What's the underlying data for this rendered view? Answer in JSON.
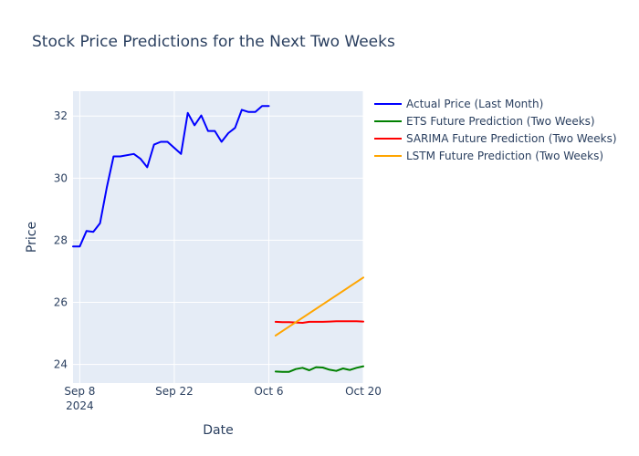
{
  "chart_data": {
    "type": "line",
    "title": "Stock Price Predictions for the Next Two Weeks",
    "xlabel": "Date",
    "ylabel": "Price",
    "x_range": [
      "2024-09-07",
      "2024-10-20"
    ],
    "ylim": [
      23.4,
      32.8
    ],
    "grid": true,
    "legend_placement": "top-right",
    "x_ticks": [
      {
        "date": "2024-09-08",
        "label": "Sep 8",
        "sublabel": "2024"
      },
      {
        "date": "2024-09-22",
        "label": "Sep 22",
        "sublabel": ""
      },
      {
        "date": "2024-10-06",
        "label": "Oct 6",
        "sublabel": ""
      },
      {
        "date": "2024-10-20",
        "label": "Oct 20",
        "sublabel": ""
      }
    ],
    "y_ticks": [
      24,
      26,
      28,
      30,
      32
    ],
    "series": [
      {
        "name": "Actual Price (Last Month)",
        "color": "#0000ff",
        "x": [
          "2024-09-07",
          "2024-09-08",
          "2024-09-09",
          "2024-09-10",
          "2024-09-11",
          "2024-09-12",
          "2024-09-13",
          "2024-09-14",
          "2024-09-16",
          "2024-09-17",
          "2024-09-18",
          "2024-09-19",
          "2024-09-20",
          "2024-09-21",
          "2024-09-23",
          "2024-09-24",
          "2024-09-25",
          "2024-09-26",
          "2024-09-27",
          "2024-09-28",
          "2024-09-29",
          "2024-09-30",
          "2024-10-01",
          "2024-10-02",
          "2024-10-03",
          "2024-10-04",
          "2024-10-05",
          "2024-10-06"
        ],
        "values": [
          27.8,
          27.8,
          28.3,
          28.27,
          28.55,
          29.7,
          30.7,
          30.7,
          30.78,
          30.62,
          30.35,
          31.08,
          31.17,
          31.17,
          30.78,
          32.1,
          31.7,
          32.02,
          31.52,
          31.52,
          31.17,
          31.45,
          31.62,
          32.2,
          32.13,
          32.13,
          32.32,
          32.32
        ]
      },
      {
        "name": "ETS Future Prediction (Two Weeks)",
        "color": "#008000",
        "x": [
          "2024-10-07",
          "2024-10-08",
          "2024-10-09",
          "2024-10-10",
          "2024-10-11",
          "2024-10-12",
          "2024-10-13",
          "2024-10-14",
          "2024-10-15",
          "2024-10-16",
          "2024-10-17",
          "2024-10-18",
          "2024-10-19",
          "2024-10-20"
        ],
        "values": [
          23.77,
          23.76,
          23.76,
          23.85,
          23.89,
          23.81,
          23.91,
          23.9,
          23.83,
          23.79,
          23.87,
          23.82,
          23.89,
          23.94
        ]
      },
      {
        "name": "SARIMA Future Prediction (Two Weeks)",
        "color": "#ff0000",
        "x": [
          "2024-10-07",
          "2024-10-08",
          "2024-10-09",
          "2024-10-10",
          "2024-10-11",
          "2024-10-12",
          "2024-10-13",
          "2024-10-14",
          "2024-10-15",
          "2024-10-16",
          "2024-10-17",
          "2024-10-18",
          "2024-10-19",
          "2024-10-20"
        ],
        "values": [
          25.37,
          25.36,
          25.36,
          25.35,
          25.34,
          25.37,
          25.37,
          25.37,
          25.38,
          25.39,
          25.39,
          25.39,
          25.39,
          25.38
        ]
      },
      {
        "name": "LSTM Future Prediction (Two Weeks)",
        "color": "#ffa500",
        "x": [
          "2024-10-07",
          "2024-10-20"
        ],
        "values": [
          24.93,
          26.8
        ]
      }
    ]
  }
}
